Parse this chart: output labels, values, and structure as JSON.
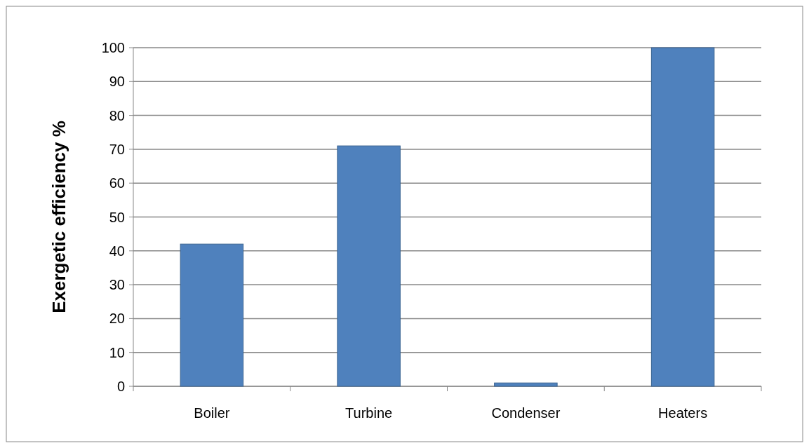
{
  "chart_data": {
    "type": "bar",
    "ylabel": "Exergetic efficiency %",
    "categories": [
      "Boiler",
      "Turbine",
      "Condenser",
      "Heaters"
    ],
    "values": [
      42,
      71,
      1,
      100
    ],
    "color": "#4f81bd",
    "ylim": [
      0,
      100
    ],
    "yticks": [
      0,
      10,
      20,
      30,
      40,
      50,
      60,
      70,
      80,
      90,
      100
    ],
    "grid": "y"
  }
}
